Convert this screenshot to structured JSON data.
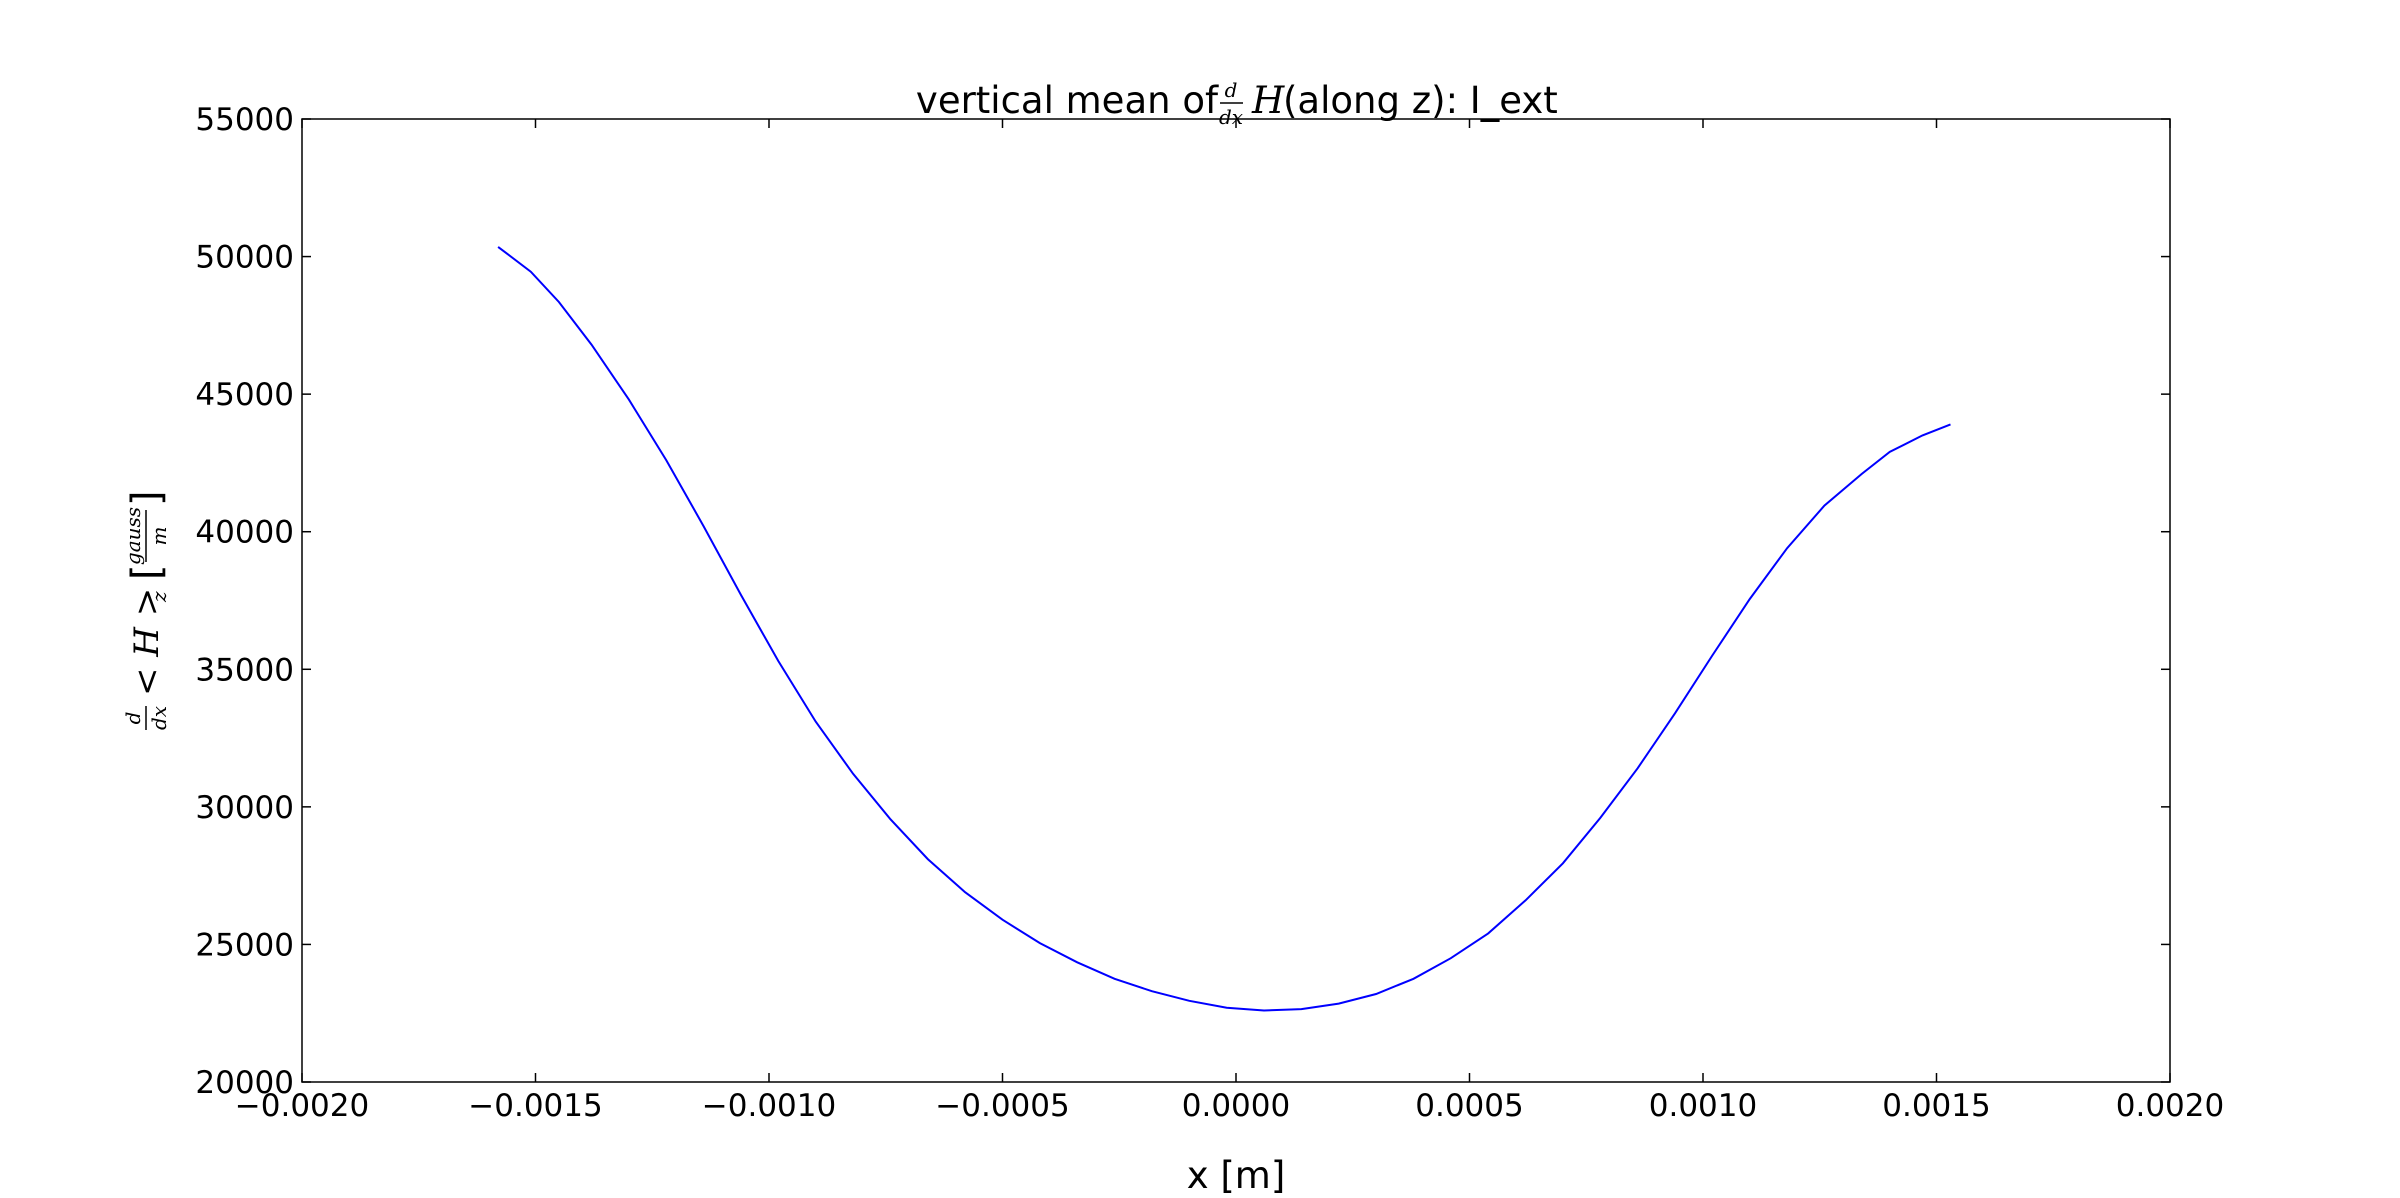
{
  "chart_data": {
    "type": "line",
    "title": {
      "prefix": "vertical mean of ",
      "frac_num": "d",
      "frac_den": "dx",
      "symbol": "H",
      "suffix": " (along z): I_ext"
    },
    "xlabel": "x [m]",
    "ylabel": {
      "frac_num": "d",
      "frac_den": "dx",
      "expr": "< H >",
      "subscript": "z",
      "unit_open": "[",
      "unit_num": "gauss",
      "unit_den": "m",
      "unit_close": "]"
    },
    "xlim": [
      -0.002,
      0.002
    ],
    "ylim": [
      20000,
      55000
    ],
    "xticks": [
      -0.002,
      -0.0015,
      -0.001,
      -0.0005,
      0.0,
      0.0005,
      0.001,
      0.0015,
      0.002
    ],
    "xtick_labels": [
      "−0.0020",
      "−0.0015",
      "−0.0010",
      "−0.0005",
      "0.0000",
      "0.0005",
      "0.0010",
      "0.0015",
      "0.0020"
    ],
    "yticks": [
      20000,
      25000,
      30000,
      35000,
      40000,
      45000,
      50000,
      55000
    ],
    "ytick_labels": [
      "20000",
      "25000",
      "30000",
      "35000",
      "40000",
      "45000",
      "50000",
      "55000"
    ],
    "grid": false,
    "series": [
      {
        "color": "#0000ff",
        "x": [
          -0.00158,
          -0.00151,
          -0.00145,
          -0.00138,
          -0.0013,
          -0.00122,
          -0.00114,
          -0.00106,
          -0.00098,
          -0.0009,
          -0.00082,
          -0.00074,
          -0.00066,
          -0.00058,
          -0.0005,
          -0.00042,
          -0.00034,
          -0.00026,
          -0.00018,
          -0.0001,
          -2e-05,
          6e-05,
          0.00014,
          0.00022,
          0.0003,
          0.00038,
          0.00046,
          0.00054,
          0.00062,
          0.0007,
          0.00078,
          0.00086,
          0.00094,
          0.00102,
          0.0011,
          0.00118,
          0.00126,
          0.00134,
          0.0014,
          0.00147,
          0.00153
        ],
        "y": [
          50350,
          49450,
          48350,
          46800,
          44800,
          42600,
          40200,
          37700,
          35300,
          33100,
          31200,
          29550,
          28100,
          26900,
          25900,
          25050,
          24350,
          23750,
          23300,
          22950,
          22700,
          22600,
          22650,
          22850,
          23200,
          23750,
          24500,
          25400,
          26600,
          27950,
          29600,
          31400,
          33400,
          35500,
          37550,
          39400,
          40950,
          42100,
          42900,
          43500,
          43900
        ]
      }
    ]
  }
}
